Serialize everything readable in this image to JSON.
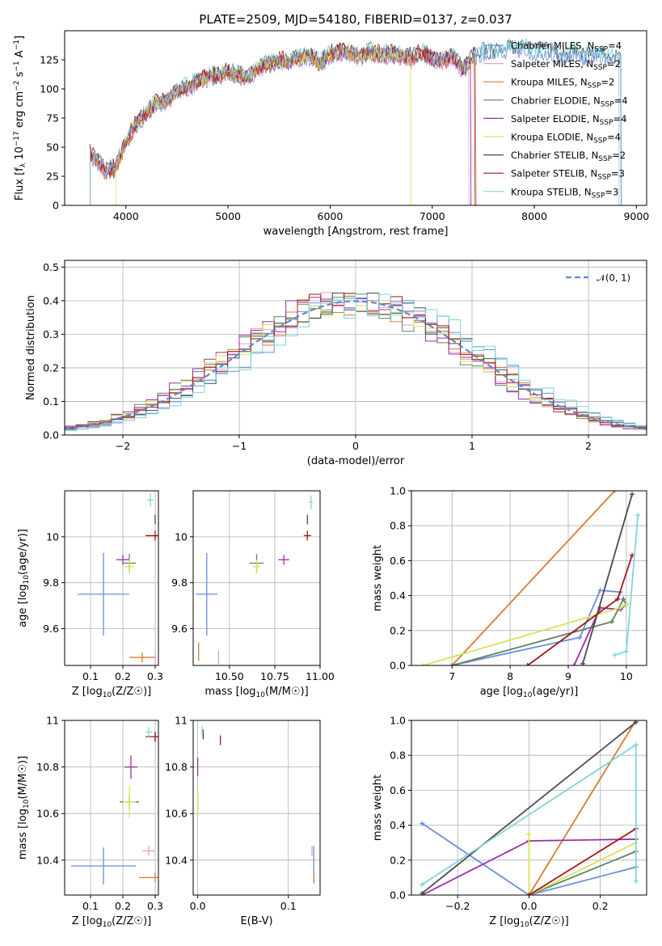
{
  "figure": {
    "title": "PLATE=2509, MJD=54180, FIBERID=0137, z=0.037"
  },
  "series_styles": [
    {
      "name": "Chabrier MILES, N_SSP=4",
      "color": "#6b8fd9"
    },
    {
      "name": "Salpeter MILES, N_SSP=2",
      "color": "#e79ad6"
    },
    {
      "name": "Kroupa MILES, N_SSP=2",
      "color": "#dd7a2e"
    },
    {
      "name": "Chabrier ELODIE, N_SSP=4",
      "color": "#5a8466"
    },
    {
      "name": "Salpeter ELODIE, N_SSP=4",
      "color": "#9a2ea3"
    },
    {
      "name": "Kroupa ELODIE, N_SSP=4",
      "color": "#d8e352"
    },
    {
      "name": "Chabrier STELIB, N_SSP=2",
      "color": "#4b4b4b"
    },
    {
      "name": "Salpeter STELIB, N_SSP=3",
      "color": "#a3161e"
    },
    {
      "name": "Kroupa STELIB, N_SSP=3",
      "color": "#7fd6dc"
    }
  ],
  "chart_data": [
    {
      "id": "spectrum",
      "type": "line",
      "title": "PLATE=2509, MJD=54180, FIBERID=0137, z=0.037",
      "xlabel": "wavelength [Angstrom, rest frame]",
      "ylabel": "Flux [f_λ 10^-17 erg cm^-2 s^-1 A^-1]",
      "xlim": [
        3400,
        9100
      ],
      "ylim": [
        0,
        150
      ],
      "xticks": [
        4000,
        5000,
        6000,
        7000,
        8000,
        9000
      ],
      "yticks": [
        0,
        25,
        50,
        75,
        100,
        125
      ],
      "legend": [
        {
          "base": "Chabrier MILES, N",
          "sub": "SSP",
          "tail": "=4"
        },
        {
          "base": "Salpeter MILES, N",
          "sub": "SSP",
          "tail": "=2"
        },
        {
          "base": "Kroupa MILES, N",
          "sub": "SSP",
          "tail": "=2"
        },
        {
          "base": "Chabrier ELODIE, N",
          "sub": "SSP",
          "tail": "=4"
        },
        {
          "base": "Salpeter ELODIE, N",
          "sub": "SSP",
          "tail": "=4"
        },
        {
          "base": "Kroupa ELODIE, N",
          "sub": "SSP",
          "tail": "=4"
        },
        {
          "base": "Chabrier STELIB, N",
          "sub": "SSP",
          "tail": "=2"
        },
        {
          "base": "Salpeter STELIB, N",
          "sub": "SSP",
          "tail": "=3"
        },
        {
          "base": "Kroupa STELIB, N",
          "sub": "SSP",
          "tail": "=3"
        }
      ],
      "continuum_points": [
        [
          3650,
          45
        ],
        [
          3800,
          30
        ],
        [
          3900,
          32
        ],
        [
          4000,
          55
        ],
        [
          4100,
          70
        ],
        [
          4200,
          80
        ],
        [
          4300,
          88
        ],
        [
          4400,
          90
        ],
        [
          4500,
          98
        ],
        [
          4600,
          102
        ],
        [
          4700,
          106
        ],
        [
          4800,
          110
        ],
        [
          4900,
          112
        ],
        [
          5000,
          115
        ],
        [
          5100,
          112
        ],
        [
          5200,
          110
        ],
        [
          5300,
          118
        ],
        [
          5400,
          122
        ],
        [
          5500,
          124
        ],
        [
          5600,
          124
        ],
        [
          5700,
          127
        ],
        [
          5800,
          128
        ],
        [
          5900,
          122
        ],
        [
          6000,
          130
        ],
        [
          6100,
          132
        ],
        [
          6200,
          130
        ],
        [
          6300,
          128
        ],
        [
          6400,
          132
        ],
        [
          6500,
          129
        ],
        [
          6600,
          131
        ],
        [
          6700,
          128
        ],
        [
          6800,
          127
        ],
        [
          6900,
          131
        ],
        [
          7000,
          126
        ],
        [
          7100,
          124
        ],
        [
          7200,
          128
        ],
        [
          7300,
          116
        ],
        [
          7400,
          128
        ],
        [
          7500,
          133
        ],
        [
          7600,
          130
        ],
        [
          7700,
          134
        ],
        [
          7800,
          135
        ],
        [
          7900,
          136
        ],
        [
          8000,
          132
        ],
        [
          8100,
          134
        ],
        [
          8200,
          131
        ],
        [
          8300,
          127
        ],
        [
          8400,
          132
        ],
        [
          8500,
          128
        ],
        [
          8600,
          131
        ],
        [
          8700,
          128
        ],
        [
          8800,
          126
        ]
      ],
      "series_ranges": [
        [
          3650,
          8850
        ],
        [
          3650,
          7360
        ],
        [
          3650,
          7430
        ],
        [
          3650,
          7380
        ],
        [
          3650,
          7380
        ],
        [
          3900,
          6790
        ],
        [
          3650,
          8850
        ],
        [
          3650,
          7420
        ],
        [
          3650,
          8830
        ]
      ]
    },
    {
      "id": "residuals",
      "type": "histogram",
      "xlabel": "(data-model)/error",
      "ylabel": "Normed distribution",
      "xlim": [
        -2.5,
        2.5
      ],
      "ylim": [
        0,
        0.52
      ],
      "xticks": [
        -2,
        -1,
        0,
        1,
        2
      ],
      "xtick_labels": [
        "−2",
        "−1",
        "0",
        "1",
        "2"
      ],
      "yticks": [
        0.0,
        0.1,
        0.2,
        0.3,
        0.4,
        0.5
      ],
      "ytick_labels": [
        "0.0",
        "0.1",
        "0.2",
        "0.3",
        "0.4",
        "0.5"
      ],
      "bin_width": 0.1,
      "reference_curve": {
        "label": "𝒩(0, 1)",
        "color": "#5b8ad6"
      }
    },
    {
      "id": "age_vs_Z",
      "type": "errorbar",
      "xlabel": "Z [log10(Z/Z☉)]",
      "ylabel": "age [log10(age/yr)]",
      "xlim": [
        0.02,
        0.31
      ],
      "ylim": [
        9.44,
        10.2
      ],
      "xticks": [
        0.1,
        0.2,
        0.3
      ],
      "yticks": [
        9.6,
        9.8,
        10.0
      ],
      "points": [
        {
          "x": 0.14,
          "y": 9.75,
          "xerr": 0.08,
          "yerr": 0.18,
          "series": 0
        },
        {
          "x": 0.3,
          "y": 9.475,
          "xerr": 0.0,
          "yerr": 0.03,
          "series": 1
        },
        {
          "x": 0.26,
          "y": 9.475,
          "xerr": 0.04,
          "yerr": 0.0,
          "series": 2
        },
        {
          "x": 0.22,
          "y": 9.885,
          "xerr": 0.02,
          "yerr": 0.04,
          "series": 3
        },
        {
          "x": 0.2,
          "y": 9.9,
          "xerr": 0.02,
          "yerr": 0.02,
          "series": 4
        },
        {
          "x": 0.22,
          "y": 9.87,
          "xerr": 0.015,
          "yerr": 0.03,
          "series": 5
        },
        {
          "x": 0.3,
          "y": 10.075,
          "xerr": 0.0,
          "yerr": 0.02,
          "series": 6
        },
        {
          "x": 0.3,
          "y": 10.005,
          "xerr": 0.03,
          "yerr": 0.02,
          "series": 7
        },
        {
          "x": 0.285,
          "y": 10.16,
          "xerr": 0.01,
          "yerr": 0.03,
          "series": 8
        }
      ]
    },
    {
      "id": "age_vs_mass",
      "type": "errorbar",
      "xlabel": "mass [log10(M/M☉)]",
      "ylabel": "",
      "xlim": [
        10.3,
        11.0
      ],
      "ylim": [
        9.44,
        10.2
      ],
      "xticks": [
        10.5,
        10.75,
        11.0
      ],
      "xtick_labels": [
        "10.50",
        "10.75",
        "11.00"
      ],
      "yticks": [
        9.6,
        9.8,
        10.0
      ],
      "points": [
        {
          "x": 10.375,
          "y": 9.75,
          "xerr": 0.06,
          "yerr": 0.18,
          "series": 0
        },
        {
          "x": 10.44,
          "y": 9.475,
          "xerr": 0.0,
          "yerr": 0.03,
          "series": 1
        },
        {
          "x": 10.33,
          "y": 9.5,
          "xerr": 0.0,
          "yerr": 0.04,
          "series": 2
        },
        {
          "x": 10.65,
          "y": 9.885,
          "xerr": 0.04,
          "yerr": 0.04,
          "series": 3
        },
        {
          "x": 10.8,
          "y": 9.9,
          "xerr": 0.03,
          "yerr": 0.02,
          "series": 4
        },
        {
          "x": 10.65,
          "y": 9.87,
          "xerr": 0.02,
          "yerr": 0.03,
          "series": 5
        },
        {
          "x": 10.93,
          "y": 10.075,
          "xerr": 0.0,
          "yerr": 0.02,
          "series": 6
        },
        {
          "x": 10.93,
          "y": 10.005,
          "xerr": 0.02,
          "yerr": 0.02,
          "series": 7
        },
        {
          "x": 10.95,
          "y": 10.15,
          "xerr": 0.01,
          "yerr": 0.03,
          "series": 8
        }
      ]
    },
    {
      "id": "mass_weight_vs_age",
      "type": "line",
      "xlabel": "age [log10(age/yr)]",
      "ylabel": "mass weight",
      "xlim": [
        6.3,
        10.35
      ],
      "ylim": [
        0,
        1.0
      ],
      "xticks": [
        7,
        8,
        9,
        10
      ],
      "yticks": [
        0.0,
        0.2,
        0.4,
        0.6,
        0.8,
        1.0
      ],
      "yticks_labels": [
        "0.0",
        "0.2",
        "0.4",
        "0.6",
        "0.8",
        "1.0"
      ],
      "series": [
        {
          "series": 0,
          "points": [
            [
              7.0,
              0.0
            ],
            [
              9.2,
              0.16
            ],
            [
              9.55,
              0.43
            ],
            [
              9.9,
              0.42
            ]
          ]
        },
        {
          "series": 2,
          "points": [
            [
              7.0,
              0.0
            ],
            [
              9.8,
              1.0
            ]
          ]
        },
        {
          "series": 3,
          "points": [
            [
              7.0,
              0.0
            ],
            [
              9.75,
              0.25
            ],
            [
              9.95,
              0.38
            ],
            [
              10.0,
              0.35
            ]
          ]
        },
        {
          "series": 4,
          "points": [
            [
              9.1,
              0.0
            ],
            [
              9.55,
              0.33
            ],
            [
              9.9,
              0.32
            ],
            [
              10.0,
              0.35
            ]
          ]
        },
        {
          "series": 5,
          "points": [
            [
              6.5,
              0.0
            ],
            [
              9.9,
              0.33
            ],
            [
              10.0,
              0.35
            ]
          ]
        },
        {
          "series": 6,
          "points": [
            [
              9.25,
              0.01
            ],
            [
              10.1,
              0.98
            ]
          ]
        },
        {
          "series": 7,
          "points": [
            [
              8.3,
              0.0
            ],
            [
              9.85,
              0.38
            ],
            [
              10.1,
              0.63
            ]
          ]
        },
        {
          "series": 8,
          "points": [
            [
              9.8,
              0.06
            ],
            [
              10.0,
              0.08
            ],
            [
              10.2,
              0.86
            ]
          ]
        }
      ]
    },
    {
      "id": "mass_vs_Z",
      "type": "errorbar",
      "xlabel": "Z [log10(Z/Z☉)]",
      "ylabel": "mass [log10(M/M☉)]",
      "xlim": [
        0.02,
        0.31
      ],
      "ylim": [
        10.25,
        11.0
      ],
      "xticks": [
        0.1,
        0.2,
        0.3
      ],
      "yticks": [
        10.4,
        10.6,
        10.8,
        11.0
      ],
      "points": [
        {
          "x": 0.14,
          "y": 10.375,
          "xerr": 0.1,
          "yerr": 0.08,
          "series": 0
        },
        {
          "x": 0.28,
          "y": 10.44,
          "xerr": 0.02,
          "yerr": 0.0,
          "series": 1
        },
        {
          "x": 0.3,
          "y": 10.325,
          "xerr": 0.05,
          "yerr": 0.0,
          "series": 2
        },
        {
          "x": 0.22,
          "y": 10.65,
          "xerr": 0.03,
          "yerr": 0.03,
          "series": 3
        },
        {
          "x": 0.225,
          "y": 10.8,
          "xerr": 0.02,
          "yerr": 0.05,
          "series": 4
        },
        {
          "x": 0.22,
          "y": 10.65,
          "xerr": 0.02,
          "yerr": 0.07,
          "series": 5
        },
        {
          "x": 0.3,
          "y": 10.93,
          "xerr": 0.0,
          "yerr": 0.0,
          "series": 6
        },
        {
          "x": 0.3,
          "y": 10.93,
          "xerr": 0.03,
          "yerr": 0.02,
          "series": 7
        },
        {
          "x": 0.28,
          "y": 10.95,
          "xerr": 0.01,
          "yerr": 0.02,
          "series": 8
        }
      ]
    },
    {
      "id": "mass_vs_EBV",
      "type": "errorbar",
      "xlabel": "E(B-V)",
      "ylabel": "",
      "xlim": [
        -0.005,
        0.135
      ],
      "ylim": [
        10.25,
        11.0
      ],
      "xticks": [
        0.0,
        0.1
      ],
      "xtick_labels": [
        "0.0",
        "0.1"
      ],
      "yticks": [
        10.4,
        10.6,
        10.8,
        11.0
      ],
      "points": [
        {
          "x": 0.128,
          "y": 10.38,
          "xerr": 0.0,
          "yerr": 0.08,
          "series": 0
        },
        {
          "x": 0.126,
          "y": 10.44,
          "xerr": 0.0,
          "yerr": 0.01,
          "series": 1
        },
        {
          "x": 0.128,
          "y": 10.325,
          "xerr": 0.0,
          "yerr": 0.02,
          "series": 2
        },
        {
          "x": 0.0,
          "y": 10.65,
          "xerr": 0.0,
          "yerr": 0.04,
          "series": 3
        },
        {
          "x": 0.0,
          "y": 10.8,
          "xerr": 0.0,
          "yerr": 0.04,
          "series": 4
        },
        {
          "x": 0.0,
          "y": 10.65,
          "xerr": 0.0,
          "yerr": 0.05,
          "series": 5
        },
        {
          "x": 0.006,
          "y": 10.94,
          "xerr": 0.0,
          "yerr": 0.02,
          "series": 6
        },
        {
          "x": 0.025,
          "y": 10.915,
          "xerr": 0.0,
          "yerr": 0.02,
          "series": 7
        },
        {
          "x": 0.005,
          "y": 10.955,
          "xerr": 0.0,
          "yerr": 0.02,
          "series": 8
        }
      ]
    },
    {
      "id": "mass_weight_vs_Z",
      "type": "line",
      "xlabel": "Z [log10(Z/Z☉)]",
      "ylabel": "mass weight",
      "xlim": [
        -0.33,
        0.33
      ],
      "ylim": [
        0,
        1.0
      ],
      "xticks": [
        -0.2,
        0.0,
        0.2
      ],
      "xtick_labels": [
        "−0.2",
        "0.0",
        "0.2"
      ],
      "yticks": [
        0.0,
        0.2,
        0.4,
        0.6,
        0.8,
        1.0
      ],
      "yticks_labels": [
        "0.0",
        "0.2",
        "0.4",
        "0.6",
        "0.8",
        "1.0"
      ],
      "series": [
        {
          "series": 0,
          "points": [
            [
              -0.3,
              0.41
            ],
            [
              0.0,
              0.0
            ],
            [
              0.3,
              0.16
            ]
          ]
        },
        {
          "series": 2,
          "points": [
            [
              0.0,
              0.0
            ],
            [
              0.3,
              1.0
            ]
          ]
        },
        {
          "series": 3,
          "points": [
            [
              0.0,
              0.0
            ],
            [
              0.3,
              0.25
            ]
          ]
        },
        {
          "series": 4,
          "points": [
            [
              -0.3,
              0.0
            ],
            [
              0.0,
              0.31
            ],
            [
              0.3,
              0.32
            ]
          ]
        },
        {
          "series": 5,
          "points": [
            [
              0.0,
              0.35
            ],
            [
              0.0,
              0.0
            ],
            [
              0.3,
              0.3
            ]
          ]
        },
        {
          "series": 6,
          "points": [
            [
              -0.3,
              0.01
            ],
            [
              0.3,
              0.99
            ]
          ]
        },
        {
          "series": 7,
          "points": [
            [
              0.0,
              0.0
            ],
            [
              0.3,
              0.38
            ]
          ]
        },
        {
          "series": 8,
          "points": [
            [
              -0.3,
              0.06
            ],
            [
              0.3,
              0.86
            ],
            [
              0.3,
              0.08
            ]
          ]
        }
      ]
    }
  ]
}
